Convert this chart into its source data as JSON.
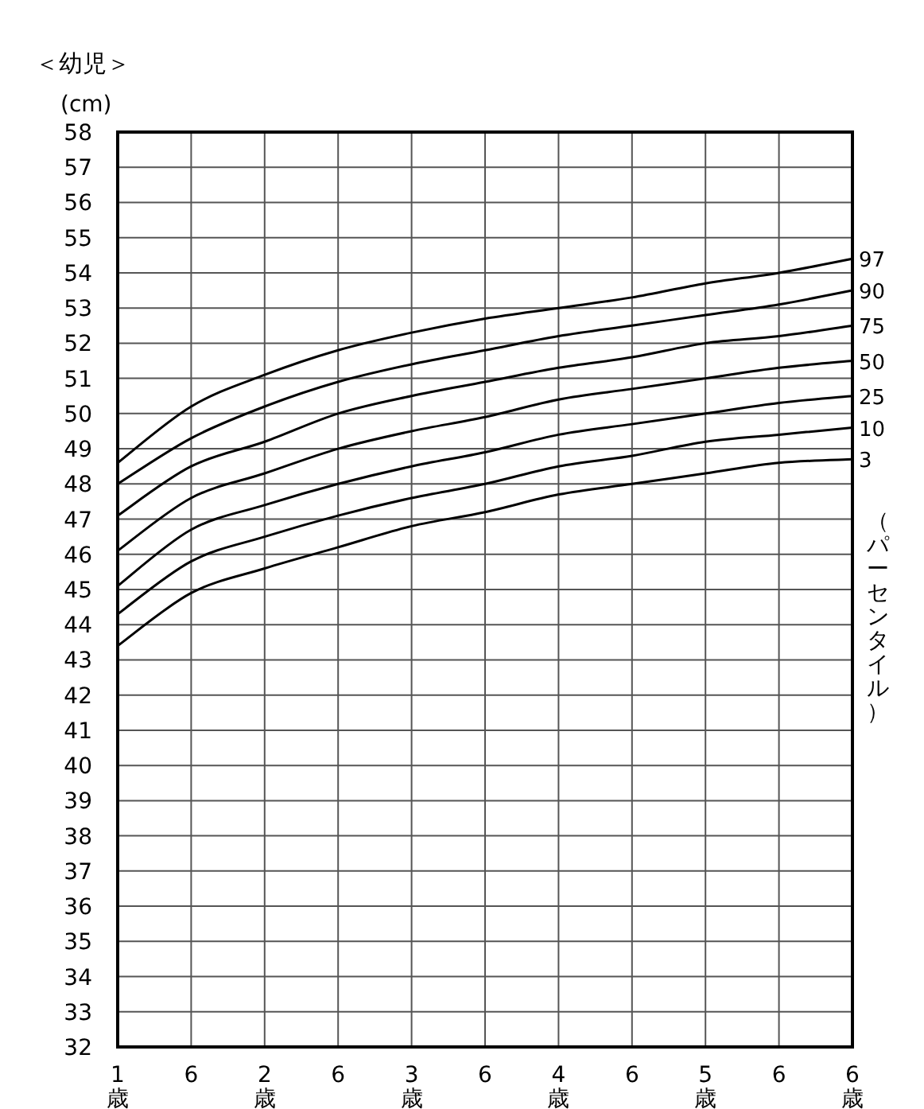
{
  "chart_data": {
    "type": "line",
    "title": "＜幼児＞",
    "ylabel": "(cm)",
    "legend_title": "（パーセンタイル）",
    "categories": [
      "1\n歳",
      "6",
      "2\n歳",
      "6",
      "3\n歳",
      "6",
      "4\n歳",
      "6",
      "5\n歳",
      "6",
      "6\n歳"
    ],
    "ylim": [
      32,
      58
    ],
    "yticks": [
      32,
      33,
      34,
      35,
      36,
      37,
      38,
      39,
      40,
      41,
      42,
      43,
      44,
      45,
      46,
      47,
      48,
      49,
      50,
      51,
      52,
      53,
      54,
      55,
      56,
      57,
      58
    ],
    "grid": true,
    "marker": "none",
    "line_style": "solid",
    "series": [
      {
        "name": "97",
        "color": "#000000",
        "values": [
          48.6,
          50.2,
          51.1,
          51.8,
          52.3,
          52.7,
          53.0,
          53.3,
          53.7,
          54.0,
          54.4
        ]
      },
      {
        "name": "90",
        "color": "#000000",
        "values": [
          48.0,
          49.3,
          50.2,
          50.9,
          51.4,
          51.8,
          52.2,
          52.5,
          52.8,
          53.1,
          53.5
        ]
      },
      {
        "name": "75",
        "color": "#000000",
        "values": [
          47.1,
          48.5,
          49.2,
          50.0,
          50.5,
          50.9,
          51.3,
          51.6,
          52.0,
          52.2,
          52.5
        ]
      },
      {
        "name": "50",
        "color": "#000000",
        "values": [
          46.1,
          47.6,
          48.3,
          49.0,
          49.5,
          49.9,
          50.4,
          50.7,
          51.0,
          51.3,
          51.5
        ]
      },
      {
        "name": "25",
        "color": "#000000",
        "values": [
          45.1,
          46.7,
          47.4,
          48.0,
          48.5,
          48.9,
          49.4,
          49.7,
          50.0,
          50.3,
          50.5
        ]
      },
      {
        "name": "10",
        "color": "#000000",
        "values": [
          44.3,
          45.8,
          46.5,
          47.1,
          47.6,
          48.0,
          48.5,
          48.8,
          49.2,
          49.4,
          49.6
        ]
      },
      {
        "name": "3",
        "color": "#000000",
        "values": [
          43.4,
          44.9,
          45.6,
          46.2,
          46.8,
          47.2,
          47.7,
          48.0,
          48.3,
          48.6,
          48.7
        ]
      }
    ]
  }
}
